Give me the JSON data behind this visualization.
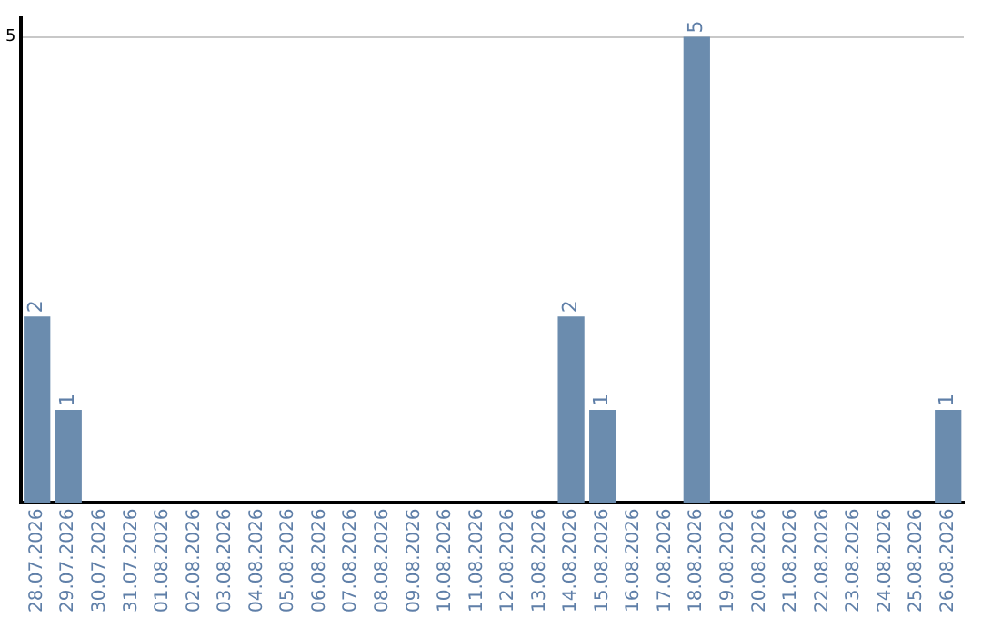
{
  "chart_data": {
    "type": "bar",
    "categories": [
      "28.07.2026",
      "29.07.2026",
      "30.07.2026",
      "31.07.2026",
      "01.08.2026",
      "02.08.2026",
      "03.08.2026",
      "04.08.2026",
      "05.08.2026",
      "06.08.2026",
      "07.08.2026",
      "08.08.2026",
      "09.08.2026",
      "10.08.2026",
      "11.08.2026",
      "12.08.2026",
      "13.08.2026",
      "14.08.2026",
      "15.08.2026",
      "16.08.2026",
      "17.08.2026",
      "18.08.2026",
      "19.08.2026",
      "20.08.2026",
      "21.08.2026",
      "22.08.2026",
      "23.08.2026",
      "24.08.2026",
      "25.08.2026",
      "26.08.2026"
    ],
    "values": [
      2,
      1,
      0,
      0,
      0,
      0,
      0,
      0,
      0,
      0,
      0,
      0,
      0,
      0,
      0,
      0,
      0,
      2,
      1,
      0,
      0,
      5,
      0,
      0,
      0,
      0,
      0,
      0,
      0,
      1
    ],
    "value_labels": [
      "2",
      "1",
      null,
      null,
      null,
      null,
      null,
      null,
      null,
      null,
      null,
      null,
      null,
      null,
      null,
      null,
      null,
      "2",
      "1",
      null,
      null,
      "5",
      null,
      null,
      null,
      null,
      null,
      null,
      null,
      "1"
    ],
    "color": "#6b8cae",
    "ylim": [
      0,
      5.2
    ],
    "yticks": [
      5
    ],
    "grid": "y",
    "legend": false
  }
}
